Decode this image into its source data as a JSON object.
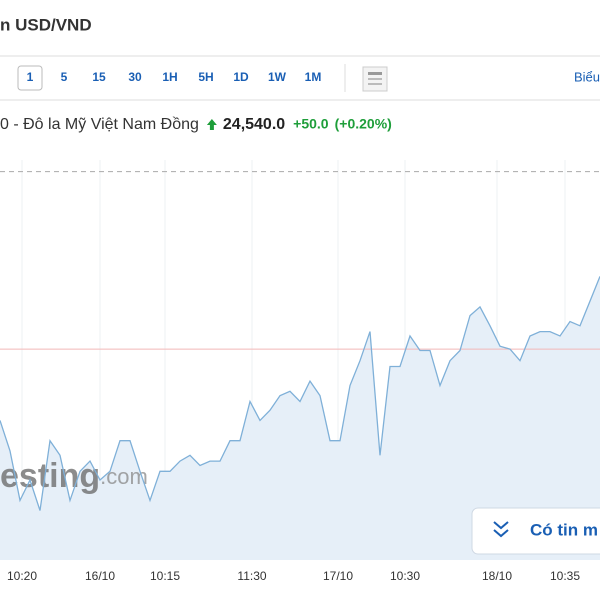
{
  "header": {
    "title": "n USD/VND"
  },
  "toolbar": {
    "intervals": [
      "1",
      "5",
      "15",
      "30",
      "1H",
      "5H",
      "1D",
      "1W",
      "1M"
    ],
    "active": "1",
    "right_link": "Biểu"
  },
  "quote": {
    "name": "0 - Đô la Mỹ Việt Nam Đồng",
    "price": "24,540.0",
    "change": "+50.0",
    "change_pct": "(+0.20%)"
  },
  "watermark": {
    "bold": "esting",
    "light": ".com"
  },
  "news_button": "Có tin m",
  "chart_data": {
    "type": "line",
    "color": "#7fb0d8",
    "fill": "#e6eff8",
    "values": [
      24441,
      24420,
      24386,
      24400,
      24379,
      24427,
      24417,
      24386,
      24406,
      24413,
      24400,
      24406,
      24427,
      24427,
      24406,
      24386,
      24406,
      24406,
      24413,
      24417,
      24410,
      24413,
      24413,
      24427,
      24427,
      24454,
      24441,
      24448,
      24458,
      24461,
      24454,
      24468,
      24458,
      24427,
      24427,
      24465,
      24482,
      24502,
      24417,
      24478,
      24478,
      24499,
      24489,
      24489,
      24465,
      24482,
      24489,
      24513,
      24519,
      24506,
      24492,
      24490,
      24482,
      24499,
      24502,
      24502,
      24499,
      24509,
      24506,
      24523,
      24540
    ],
    "xlim": [
      0,
      60
    ],
    "xticks": [
      {
        "value": 2.2,
        "label": "10:20"
      },
      {
        "value": 10,
        "label": "16/10"
      },
      {
        "value": 16.5,
        "label": "10:15"
      },
      {
        "value": 25.2,
        "label": "11:30"
      },
      {
        "value": 33.8,
        "label": "17/10"
      },
      {
        "value": 40.5,
        "label": "10:30"
      },
      {
        "value": 49.7,
        "label": "18/10"
      },
      {
        "value": 56.5,
        "label": "10:35"
      }
    ],
    "ylim": [
      24345,
      24620
    ],
    "ref_line": {
      "value": 24490,
      "color": "#f2b8b8"
    },
    "high_line": {
      "value": 24612,
      "color": "#aaaaaa"
    },
    "grid": true
  }
}
